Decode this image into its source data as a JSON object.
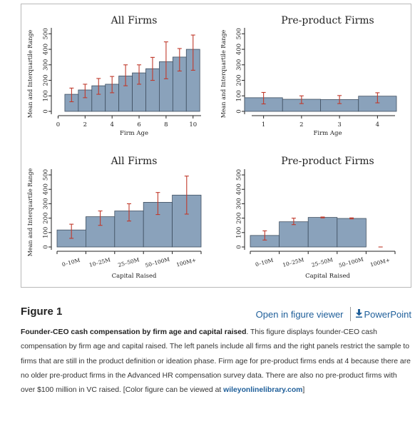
{
  "figure": {
    "label": "Figure 1",
    "open_link": "Open in figure viewer",
    "ppt_link": "PowerPoint",
    "download_icon": "download-arrow-icon",
    "caption_title": "Founder-CEO cash compensation by firm age and capital raised",
    "caption_body": ". This figure displays founder-CEO cash compensation by firm age and capital raised. The left panels include all firms and the right panels restrict the sample to firms that are still in the product definition or ideation phase. Firm age for pre-product firms ends at 4 because there are no older pre-product firms in the Advanced HR compensation survey data. There are also no pre-product firms with over $100 million in VC raised. [Color figure can be viewed at ",
    "caption_link": "wileyonlinelibrary.com",
    "caption_end": "]"
  },
  "colors": {
    "bar": "#8aa2bb",
    "bar_edge": "#3f4f60",
    "error": "#c0392b"
  },
  "chart_data": [
    {
      "type": "bar",
      "title": "All Firms",
      "ylabel": "Mean and Interquartile Range",
      "xlabel": "Firm Age",
      "x": [
        1,
        2,
        3,
        4,
        5,
        6,
        7,
        8,
        9,
        10
      ],
      "xticks": [
        "0",
        "2",
        "4",
        "6",
        "8",
        "10"
      ],
      "xtick_values": [
        0,
        2,
        4,
        6,
        8,
        10
      ],
      "xlim": [
        -0.5,
        10.7
      ],
      "yticks": [
        "0",
        "100",
        "200",
        "300",
        "400",
        "500"
      ],
      "ylim": [
        0,
        520
      ],
      "values": [
        110,
        138,
        165,
        175,
        228,
        248,
        275,
        320,
        350,
        400
      ],
      "err_low": [
        62,
        88,
        110,
        120,
        165,
        175,
        200,
        210,
        260,
        265
      ],
      "err_high": [
        150,
        175,
        212,
        225,
        300,
        300,
        348,
        448,
        405,
        492
      ],
      "grid": false
    },
    {
      "type": "bar",
      "title": "Pre-product Firms",
      "ylabel": "Mean and Interquartile Range",
      "xlabel": "Firm Age",
      "x": [
        1,
        2,
        3,
        4
      ],
      "xticks": [
        "1",
        "2",
        "3",
        "4"
      ],
      "xtick_values": [
        1,
        2,
        3,
        4
      ],
      "xlim": [
        0.5,
        4.5
      ],
      "yticks": [
        "0",
        "100",
        "200",
        "300",
        "400",
        "500"
      ],
      "ylim": [
        0,
        520
      ],
      "values": [
        88,
        78,
        76,
        98
      ],
      "err_low": [
        48,
        50,
        50,
        55
      ],
      "err_high": [
        122,
        100,
        102,
        120
      ],
      "grid": false
    },
    {
      "type": "bar",
      "title": "All Firms",
      "ylabel": "Mean and Interquartile Range",
      "xlabel": "Capital Raised",
      "categories": [
        "0–10M",
        "10–25M",
        "25–50M",
        "50–100M",
        "100M+"
      ],
      "yticks": [
        "0",
        "100",
        "200",
        "300",
        "400",
        "500"
      ],
      "ylim": [
        0,
        520
      ],
      "values": [
        118,
        210,
        250,
        310,
        360
      ],
      "err_low": [
        60,
        150,
        180,
        225,
        228
      ],
      "err_high": [
        158,
        250,
        300,
        378,
        492
      ],
      "grid": false
    },
    {
      "type": "bar",
      "title": "Pre-product Firms",
      "ylabel": "",
      "xlabel": "Capital Raised",
      "categories": [
        "0–10M",
        "10–25M",
        "25–50M",
        "50–100M",
        "100M+"
      ],
      "yticks": [
        "0",
        "100",
        "200",
        "300",
        "400",
        "500"
      ],
      "ylim": [
        0,
        520
      ],
      "values": [
        80,
        175,
        205,
        198,
        0
      ],
      "err_low": [
        48,
        155,
        202,
        195,
        0
      ],
      "err_high": [
        112,
        200,
        208,
        202,
        0
      ],
      "has_data": [
        true,
        true,
        true,
        true,
        false
      ],
      "grid": false
    }
  ]
}
